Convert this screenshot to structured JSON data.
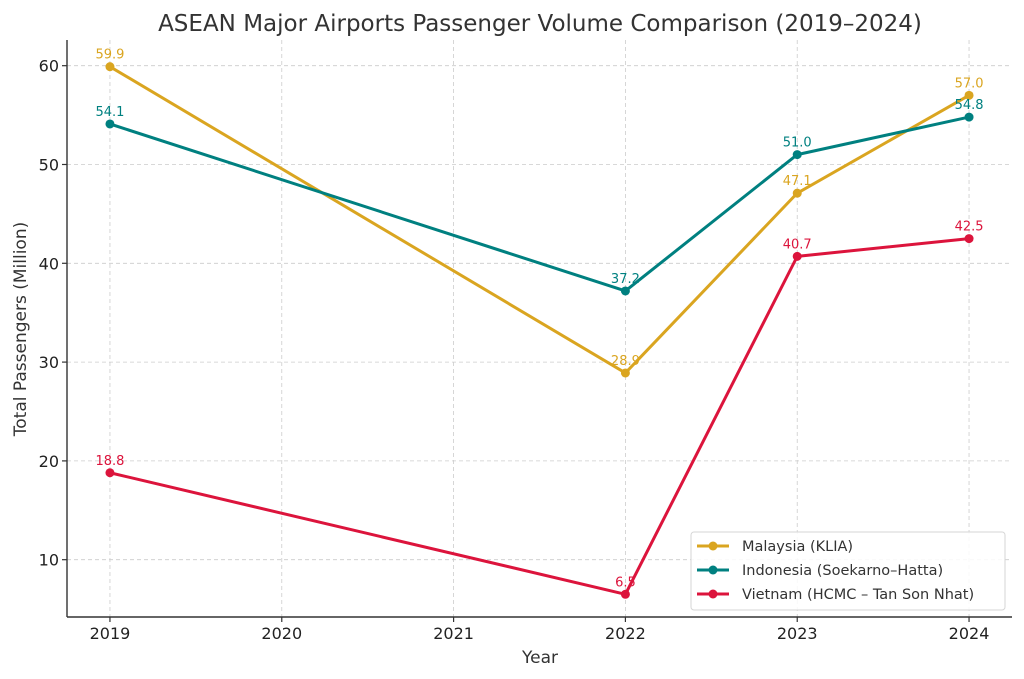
{
  "chart_data": {
    "type": "line",
    "title": "ASEAN Major Airports Passenger Volume Comparison (2019–2024)",
    "xlabel": "Year",
    "ylabel": "Total Passengers (Million)",
    "x": [
      2019,
      2020,
      2021,
      2022,
      2023,
      2024
    ],
    "x_ticks": [
      "2019",
      "2020",
      "2021",
      "2022",
      "2023",
      "2024"
    ],
    "y_ticks": [
      10,
      20,
      30,
      40,
      50,
      60
    ],
    "xlim": [
      2018.75,
      2024.25
    ],
    "ylim": [
      4.2,
      62.6
    ],
    "grid": true,
    "legend_position": "lower-right",
    "series": [
      {
        "name": "Malaysia (KLIA)",
        "color": "#DAA520",
        "x": [
          2019,
          2022,
          2023,
          2024
        ],
        "values": [
          59.9,
          28.9,
          47.1,
          57.0
        ],
        "labels": [
          "59.9",
          "28.9",
          "47.1",
          "57.0"
        ]
      },
      {
        "name": "Indonesia (Soekarno–Hatta)",
        "color": "#008080",
        "x": [
          2019,
          2022,
          2023,
          2024
        ],
        "values": [
          54.1,
          37.2,
          51.0,
          54.8
        ],
        "labels": [
          "54.1",
          "37.2",
          "51.0",
          "54.8"
        ]
      },
      {
        "name": "Vietnam (HCMC – Tan Son Nhat)",
        "color": "#DC143C",
        "x": [
          2019,
          2022,
          2023,
          2024
        ],
        "values": [
          18.8,
          6.5,
          40.7,
          42.5
        ],
        "labels": [
          "18.8",
          "6.5",
          "40.7",
          "42.5"
        ]
      }
    ]
  }
}
